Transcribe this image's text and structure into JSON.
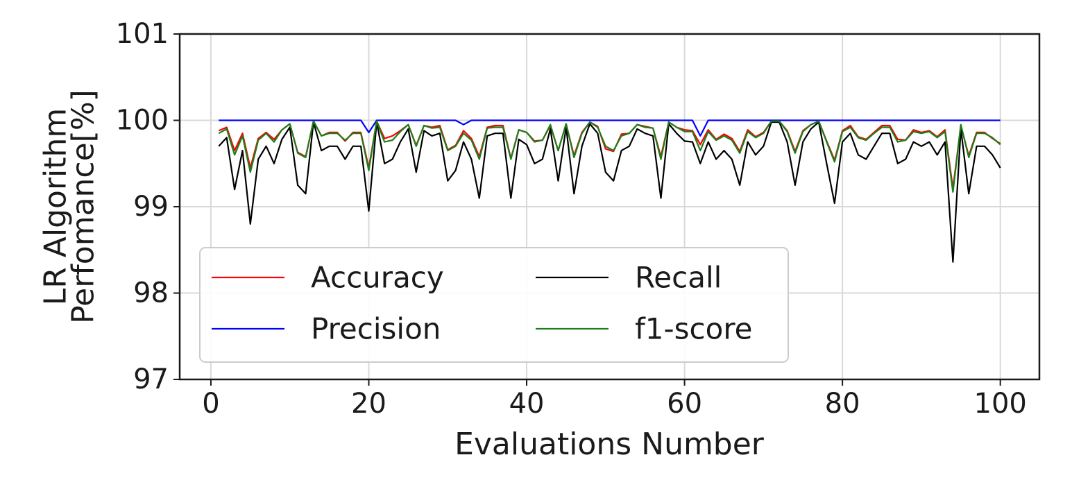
{
  "chart_data": {
    "type": "line",
    "title": "",
    "xlabel": "Evaluations Number",
    "ylabel_lines": [
      "LR Algorithm",
      "Perfomance[%]"
    ],
    "xlim": [
      -3.95,
      104.95
    ],
    "ylim": [
      97,
      101
    ],
    "x_ticks": [
      0,
      20,
      40,
      60,
      80,
      100
    ],
    "y_ticks": [
      97,
      98,
      99,
      100,
      101
    ],
    "grid": true,
    "legend": {
      "placement": "lower-left",
      "columns": 2,
      "order": [
        "accuracy",
        "recall",
        "precision",
        "f1"
      ]
    },
    "x": [
      1,
      2,
      3,
      4,
      5,
      6,
      7,
      8,
      9,
      10,
      11,
      12,
      13,
      14,
      15,
      16,
      17,
      18,
      19,
      20,
      21,
      22,
      23,
      24,
      25,
      26,
      27,
      28,
      29,
      30,
      31,
      32,
      33,
      34,
      35,
      36,
      37,
      38,
      39,
      40,
      41,
      42,
      43,
      44,
      45,
      46,
      47,
      48,
      49,
      50,
      51,
      52,
      53,
      54,
      55,
      56,
      57,
      58,
      59,
      60,
      61,
      62,
      63,
      64,
      65,
      66,
      67,
      68,
      69,
      70,
      71,
      72,
      73,
      74,
      75,
      76,
      77,
      78,
      79,
      80,
      81,
      82,
      83,
      84,
      85,
      86,
      87,
      88,
      89,
      90,
      91,
      92,
      93,
      94,
      95,
      96,
      97,
      98,
      99,
      100
    ],
    "series": [
      {
        "key": "accuracy",
        "name": "Accuracy",
        "color": "#ff0000",
        "values": [
          99.88,
          99.92,
          99.65,
          99.85,
          99.45,
          99.79,
          99.86,
          99.78,
          99.89,
          99.96,
          99.63,
          99.58,
          99.99,
          99.82,
          99.86,
          99.86,
          99.76,
          99.86,
          99.86,
          99.45,
          99.99,
          99.79,
          99.82,
          99.88,
          99.95,
          99.71,
          99.94,
          99.92,
          99.94,
          99.66,
          99.71,
          99.88,
          99.79,
          99.58,
          99.92,
          99.94,
          99.94,
          99.56,
          99.89,
          99.86,
          99.76,
          99.77,
          99.94,
          99.65,
          99.96,
          99.59,
          99.86,
          99.98,
          99.93,
          99.67,
          99.64,
          99.84,
          99.85,
          99.95,
          99.93,
          99.91,
          99.58,
          99.98,
          99.92,
          99.89,
          99.88,
          99.72,
          99.89,
          99.78,
          99.84,
          99.79,
          99.64,
          99.89,
          99.81,
          99.86,
          99.99,
          99.99,
          99.88,
          99.64,
          99.88,
          99.95,
          99.99,
          99.76,
          99.54,
          99.88,
          99.94,
          99.81,
          99.78,
          99.86,
          99.94,
          99.94,
          99.78,
          99.77,
          99.89,
          99.86,
          99.88,
          99.81,
          99.89,
          99.21,
          99.94,
          99.59,
          99.86,
          99.86,
          99.79,
          99.73
        ]
      },
      {
        "key": "recall",
        "name": "Recall",
        "color": "#000000",
        "values": [
          99.7,
          99.8,
          99.2,
          99.65,
          98.8,
          99.55,
          99.7,
          99.5,
          99.78,
          99.92,
          99.25,
          99.15,
          99.98,
          99.65,
          99.7,
          99.7,
          99.55,
          99.7,
          99.7,
          98.95,
          99.98,
          99.5,
          99.55,
          99.75,
          99.9,
          99.4,
          99.88,
          99.82,
          99.85,
          99.3,
          99.42,
          99.75,
          99.55,
          99.1,
          99.82,
          99.85,
          99.85,
          99.1,
          99.78,
          99.72,
          99.5,
          99.55,
          99.9,
          99.3,
          99.92,
          99.15,
          99.7,
          99.96,
          99.85,
          99.4,
          99.3,
          99.65,
          99.7,
          99.9,
          99.85,
          99.82,
          99.1,
          99.96,
          99.85,
          99.76,
          99.75,
          99.5,
          99.75,
          99.55,
          99.65,
          99.55,
          99.25,
          99.75,
          99.6,
          99.7,
          99.98,
          99.98,
          99.75,
          99.25,
          99.75,
          99.9,
          99.98,
          99.5,
          99.04,
          99.75,
          99.85,
          99.6,
          99.55,
          99.7,
          99.85,
          99.85,
          99.5,
          99.55,
          99.75,
          99.7,
          99.75,
          99.6,
          99.75,
          98.36,
          99.9,
          99.15,
          99.7,
          99.7,
          99.6,
          99.45
        ]
      },
      {
        "key": "precision",
        "name": "Precision",
        "color": "#0000ff",
        "values": [
          100,
          100,
          100,
          100,
          100,
          100,
          100,
          100,
          100,
          100,
          100,
          100,
          100,
          100,
          100,
          100,
          100,
          100,
          100,
          99.86,
          100,
          100,
          100,
          100,
          100,
          100,
          100,
          100,
          100,
          100,
          100,
          99.95,
          100,
          100,
          100,
          100,
          100,
          100,
          100,
          100,
          100,
          100,
          100,
          100,
          100,
          100,
          100,
          100,
          100,
          100,
          100,
          100,
          100,
          100,
          100,
          100,
          100,
          100,
          100,
          100,
          100,
          99.82,
          100,
          100,
          100,
          100,
          100,
          100,
          100,
          100,
          100,
          100,
          100,
          100,
          100,
          100,
          100,
          100,
          100,
          100,
          100,
          100,
          100,
          100,
          100,
          100,
          100,
          100,
          100,
          100,
          100,
          100,
          100,
          100,
          100,
          100,
          100,
          100,
          100,
          100
        ]
      },
      {
        "key": "f1",
        "name": "f1-score",
        "color": "#1a7f1a",
        "values": [
          99.85,
          99.9,
          99.6,
          99.82,
          99.4,
          99.77,
          99.85,
          99.75,
          99.89,
          99.96,
          99.62,
          99.57,
          99.99,
          99.82,
          99.85,
          99.85,
          99.77,
          99.85,
          99.85,
          99.42,
          99.99,
          99.75,
          99.77,
          99.87,
          99.95,
          99.7,
          99.94,
          99.91,
          99.92,
          99.65,
          99.7,
          99.85,
          99.77,
          99.55,
          99.91,
          99.92,
          99.92,
          99.55,
          99.89,
          99.86,
          99.75,
          99.77,
          99.95,
          99.65,
          99.96,
          99.57,
          99.85,
          99.98,
          99.92,
          99.7,
          99.65,
          99.82,
          99.85,
          99.95,
          99.92,
          99.91,
          99.55,
          99.98,
          99.92,
          99.87,
          99.87,
          99.65,
          99.87,
          99.77,
          99.82,
          99.77,
          99.62,
          99.87,
          99.8,
          99.85,
          99.99,
          99.99,
          99.87,
          99.62,
          99.87,
          99.95,
          99.99,
          99.75,
          99.52,
          99.87,
          99.92,
          99.8,
          99.77,
          99.85,
          99.92,
          99.92,
          99.75,
          99.77,
          99.87,
          99.85,
          99.87,
          99.8,
          99.87,
          99.17,
          99.95,
          99.57,
          99.85,
          99.85,
          99.8,
          99.72
        ]
      }
    ]
  }
}
